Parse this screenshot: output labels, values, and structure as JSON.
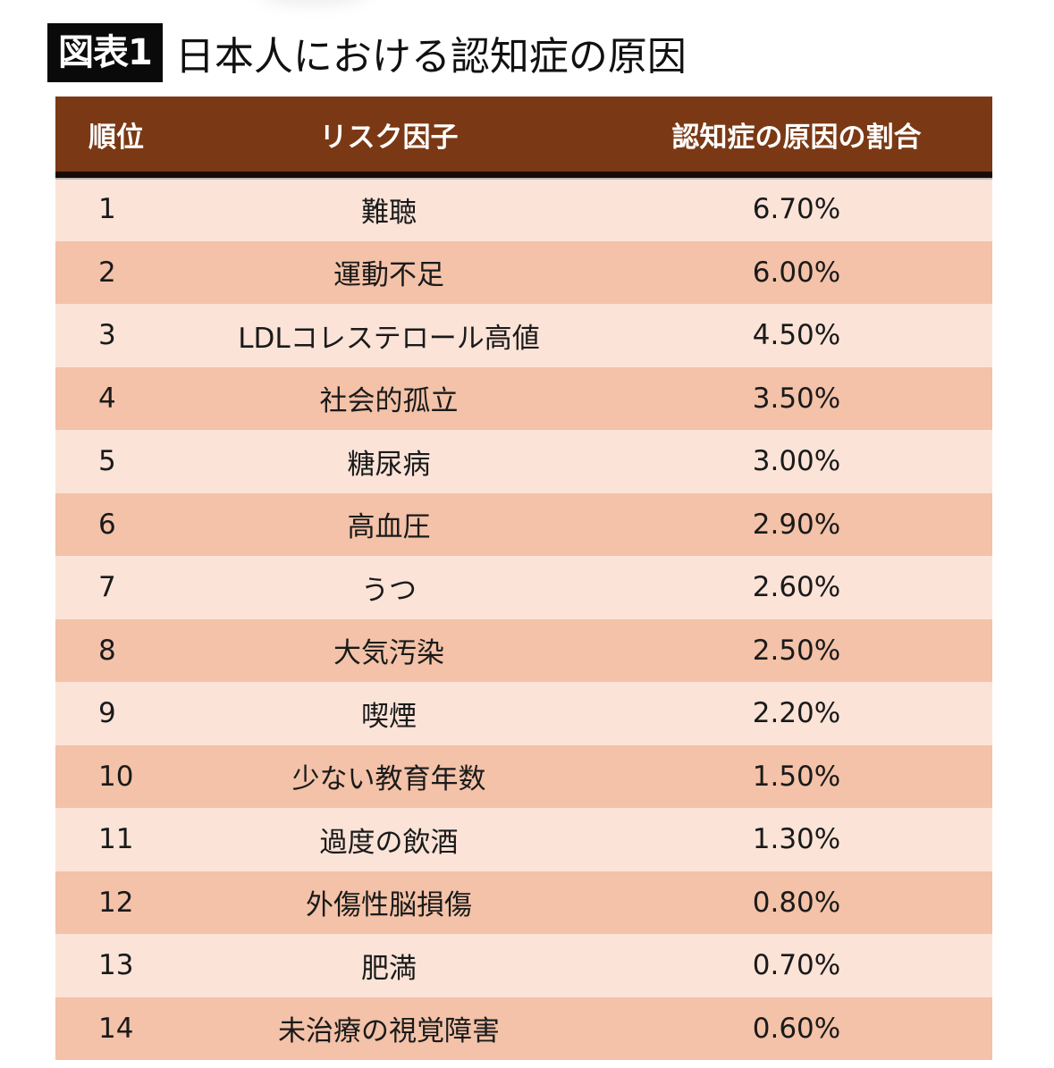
{
  "title": {
    "badge": "図表1",
    "text": "日本人における認知症の原因"
  },
  "table": {
    "headers": [
      "順位",
      "リスク因子",
      "認知症の原因の割合"
    ],
    "rows": [
      {
        "rank": "1",
        "factor": "難聴",
        "share": "6.70%"
      },
      {
        "rank": "2",
        "factor": "運動不足",
        "share": "6.00%"
      },
      {
        "rank": "3",
        "factor": "LDLコレステロール高値",
        "share": "4.50%"
      },
      {
        "rank": "4",
        "factor": "社会的孤立",
        "share": "3.50%"
      },
      {
        "rank": "5",
        "factor": "糖尿病",
        "share": "3.00%"
      },
      {
        "rank": "6",
        "factor": "高血圧",
        "share": "2.90%"
      },
      {
        "rank": "7",
        "factor": "うつ",
        "share": "2.60%"
      },
      {
        "rank": "8",
        "factor": "大気汚染",
        "share": "2.50%"
      },
      {
        "rank": "9",
        "factor": "喫煙",
        "share": "2.20%"
      },
      {
        "rank": "10",
        "factor": "少ない教育年数",
        "share": "1.50%"
      },
      {
        "rank": "11",
        "factor": "過度の飲酒",
        "share": "1.30%"
      },
      {
        "rank": "12",
        "factor": "外傷性脳損傷",
        "share": "0.80%"
      },
      {
        "rank": "13",
        "factor": "肥満",
        "share": "0.70%"
      },
      {
        "rank": "14",
        "factor": "未治療の視覚障害",
        "share": "0.60%"
      }
    ]
  },
  "colors": {
    "header": "#7a3914",
    "row_light": "#fbe3d8",
    "row_dark": "#f3c2a8"
  }
}
